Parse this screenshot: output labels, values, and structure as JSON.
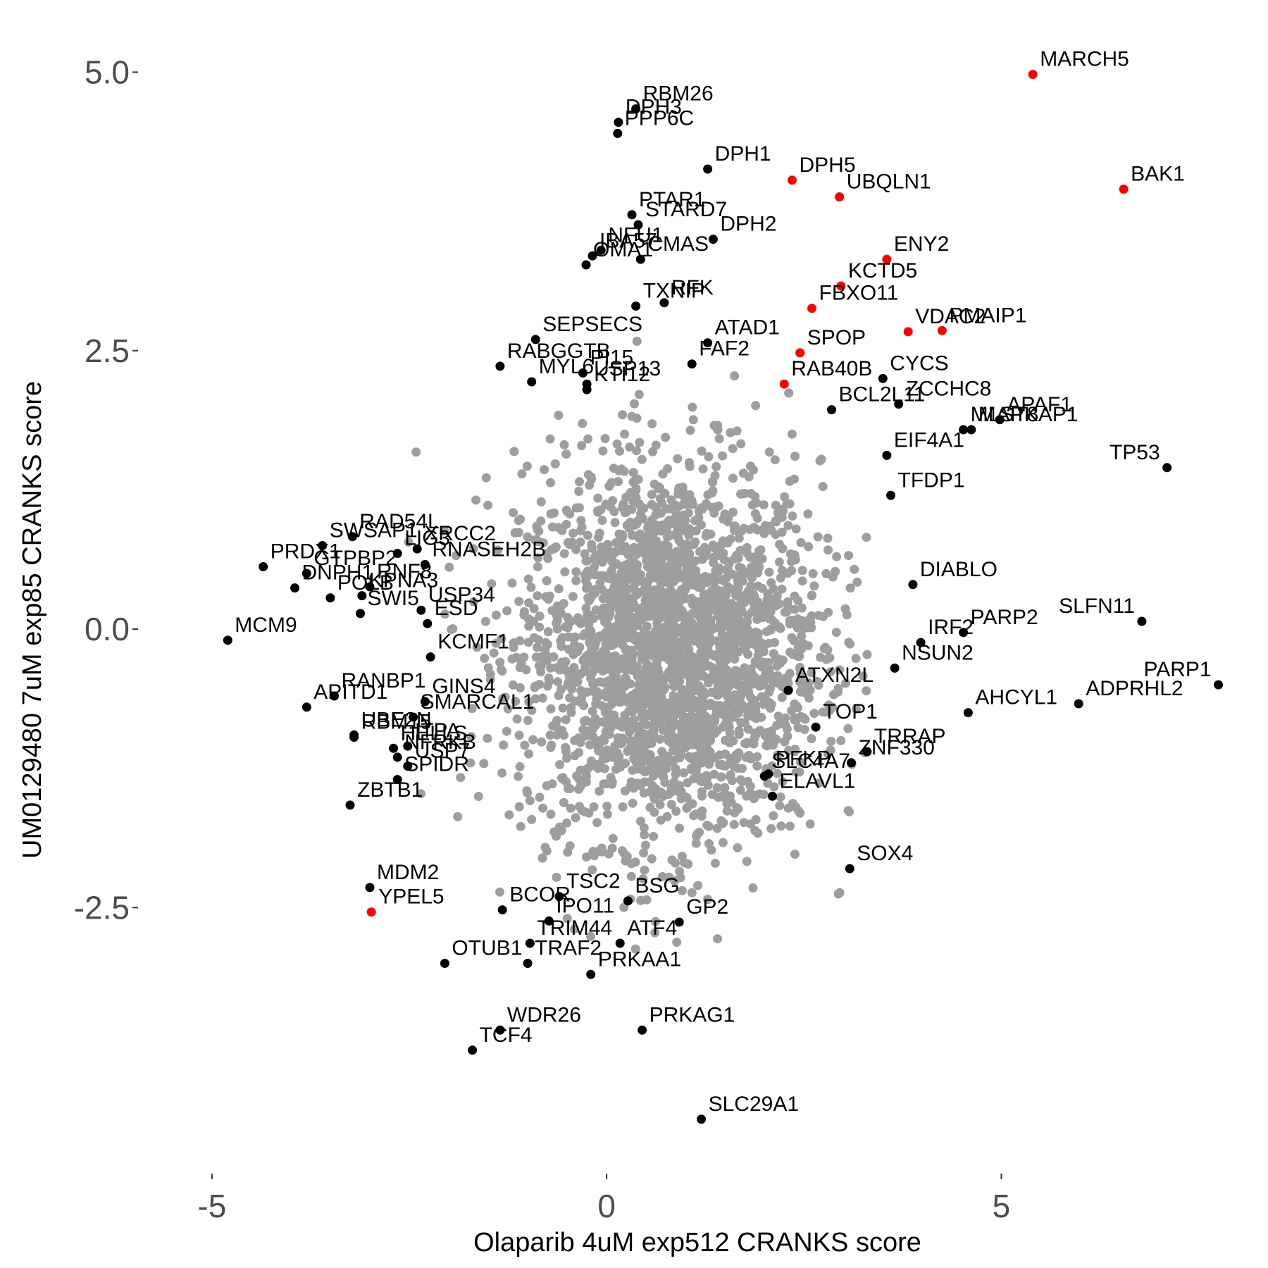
{
  "chart_data": {
    "type": "scatter",
    "title": "",
    "xlabel": "Olaparib 4uM exp512 CRANKS score",
    "ylabel": "UM0129480 7uM exp85 CRANKS score",
    "xlim": [
      -5.9,
      8.2
    ],
    "ylim": [
      -4.85,
      5.3
    ],
    "xticks": [
      -5,
      0,
      5
    ],
    "xtick_labels": [
      "-5",
      "0",
      "5"
    ],
    "yticks": [
      -2.5,
      0.0,
      2.5,
      5.0
    ],
    "ytick_labels": [
      "-2.5",
      "0.0",
      "2.5",
      "5.0"
    ],
    "grid": false,
    "legend": "none",
    "colors": {
      "background_genes": "#9e9e9e",
      "labeled_genes": "#000000",
      "highlighted_genes": "#ff0000",
      "tick_labels": "#4d4d4d"
    },
    "background_cloud": {
      "x_center": 0.8,
      "y_center": -0.2,
      "x_spread": 0.95,
      "y_spread": 0.85,
      "count": 2600
    },
    "labeled_points": [
      {
        "label": "MARCH5",
        "x": 5.4,
        "y": 4.98,
        "color": "red"
      },
      {
        "label": "BAK1",
        "x": 6.55,
        "y": 3.95,
        "color": "red"
      },
      {
        "label": "RBM26",
        "x": 0.37,
        "y": 4.67,
        "color": "black"
      },
      {
        "label": "DPH3",
        "x": 0.15,
        "y": 4.55,
        "color": "black"
      },
      {
        "label": "PPP6C",
        "x": 0.14,
        "y": 4.45,
        "color": "black"
      },
      {
        "label": "DPH1",
        "x": 1.28,
        "y": 4.13,
        "color": "black"
      },
      {
        "label": "DPH5",
        "x": 2.35,
        "y": 4.03,
        "color": "red"
      },
      {
        "label": "UBQLN1",
        "x": 2.95,
        "y": 3.88,
        "color": "red"
      },
      {
        "label": "PTAR1",
        "x": 0.32,
        "y": 3.72,
        "color": "black"
      },
      {
        "label": "STARD7",
        "x": 0.4,
        "y": 3.63,
        "color": "black"
      },
      {
        "label": "NFU1",
        "x": -0.07,
        "y": 3.4,
        "color": "black"
      },
      {
        "label": "IBA57",
        "x": -0.18,
        "y": 3.35,
        "color": "black"
      },
      {
        "label": "DPH2",
        "x": 1.35,
        "y": 3.5,
        "color": "black"
      },
      {
        "label": "CMAS",
        "x": 0.43,
        "y": 3.32,
        "color": "black"
      },
      {
        "label": "OMA1",
        "x": -0.26,
        "y": 3.27,
        "color": "black"
      },
      {
        "label": "KCTD5",
        "x": 2.97,
        "y": 3.08,
        "color": "red"
      },
      {
        "label": "ENY2",
        "x": 3.55,
        "y": 3.32,
        "color": "red"
      },
      {
        "label": "RFK",
        "x": 0.73,
        "y": 2.93,
        "color": "black"
      },
      {
        "label": "FBXO11",
        "x": 2.6,
        "y": 2.88,
        "color": "red"
      },
      {
        "label": "TXNIP",
        "x": 0.37,
        "y": 2.9,
        "color": "black"
      },
      {
        "label": "VDAC2",
        "x": 3.82,
        "y": 2.67,
        "color": "red"
      },
      {
        "label": "PMAIP1",
        "x": 4.25,
        "y": 2.68,
        "color": "red"
      },
      {
        "label": "SPOP",
        "x": 2.45,
        "y": 2.48,
        "color": "red"
      },
      {
        "label": "SEPSECS",
        "x": -0.9,
        "y": 2.6,
        "color": "black"
      },
      {
        "label": "ATAD1",
        "x": 1.28,
        "y": 2.57,
        "color": "black"
      },
      {
        "label": "RABGGTB",
        "x": -1.35,
        "y": 2.36,
        "color": "black"
      },
      {
        "label": "FAF2",
        "x": 1.08,
        "y": 2.38,
        "color": "black"
      },
      {
        "label": "PI15",
        "x": -0.3,
        "y": 2.3,
        "color": "black"
      },
      {
        "label": "RAB40B",
        "x": 2.25,
        "y": 2.2,
        "color": "red"
      },
      {
        "label": "CYCS",
        "x": 3.5,
        "y": 2.25,
        "color": "black"
      },
      {
        "label": "MYL6",
        "x": -0.95,
        "y": 2.22,
        "color": "black"
      },
      {
        "label": "USP13",
        "x": -0.25,
        "y": 2.2,
        "color": "black"
      },
      {
        "label": "KTI12",
        "x": -0.25,
        "y": 2.15,
        "color": "black"
      },
      {
        "label": "ZCCHC8",
        "x": 3.7,
        "y": 2.02,
        "color": "black"
      },
      {
        "label": "BCL2L11",
        "x": 2.85,
        "y": 1.97,
        "color": "black"
      },
      {
        "label": "APAF1",
        "x": 4.98,
        "y": 1.88,
        "color": "black"
      },
      {
        "label": "MLST8",
        "x": 4.52,
        "y": 1.79,
        "color": "black"
      },
      {
        "label": "MAPKAP1",
        "x": 4.62,
        "y": 1.79,
        "color": "black"
      },
      {
        "label": "TP53",
        "x": 7.1,
        "y": 1.45,
        "color": "black"
      },
      {
        "label": "EIF4A1",
        "x": 3.55,
        "y": 1.56,
        "color": "black"
      },
      {
        "label": "TFDP1",
        "x": 3.6,
        "y": 1.2,
        "color": "black"
      },
      {
        "label": "SWSAP1",
        "x": -3.6,
        "y": 0.75,
        "color": "black"
      },
      {
        "label": "RAD54L",
        "x": -3.22,
        "y": 0.83,
        "color": "black"
      },
      {
        "label": "DNPH1",
        "x": -3.95,
        "y": 0.37,
        "color": "black"
      },
      {
        "label": "GTPBP2",
        "x": -3.8,
        "y": 0.5,
        "color": "black"
      },
      {
        "label": "XRCC2",
        "x": -2.4,
        "y": 0.72,
        "color": "black"
      },
      {
        "label": "LIG3",
        "x": -2.65,
        "y": 0.68,
        "color": "black"
      },
      {
        "label": "PRDX1",
        "x": -4.35,
        "y": 0.56,
        "color": "black"
      },
      {
        "label": "RNASEH2B",
        "x": -2.3,
        "y": 0.58,
        "color": "black"
      },
      {
        "label": "RNF8",
        "x": -3.0,
        "y": 0.38,
        "color": "black"
      },
      {
        "label": "DIABLO",
        "x": 3.88,
        "y": 0.4,
        "color": "black"
      },
      {
        "label": "POLB",
        "x": -3.5,
        "y": 0.28,
        "color": "black"
      },
      {
        "label": "USP34",
        "x": -2.35,
        "y": 0.17,
        "color": "black"
      },
      {
        "label": "KPNA3",
        "x": -3.1,
        "y": 0.3,
        "color": "black"
      },
      {
        "label": "SWI5",
        "x": -3.12,
        "y": 0.14,
        "color": "black"
      },
      {
        "label": "IRF2",
        "x": 3.98,
        "y": -0.12,
        "color": "black"
      },
      {
        "label": "SLFN11",
        "x": 6.78,
        "y": 0.07,
        "color": "black"
      },
      {
        "label": "ESD",
        "x": -2.27,
        "y": 0.05,
        "color": "black"
      },
      {
        "label": "PARP2",
        "x": 4.52,
        "y": -0.03,
        "color": "black"
      },
      {
        "label": "MCM9",
        "x": -4.8,
        "y": -0.1,
        "color": "black"
      },
      {
        "label": "KCMF1",
        "x": -2.23,
        "y": -0.25,
        "color": "black"
      },
      {
        "label": "NSUN2",
        "x": 3.65,
        "y": -0.35,
        "color": "black"
      },
      {
        "label": "ADPRHL2",
        "x": 5.98,
        "y": -0.67,
        "color": "black"
      },
      {
        "label": "PARP1",
        "x": 7.75,
        "y": -0.5,
        "color": "black"
      },
      {
        "label": "RANBP1",
        "x": -3.45,
        "y": -0.6,
        "color": "black"
      },
      {
        "label": "ATXN2L",
        "x": 2.3,
        "y": -0.55,
        "color": "black"
      },
      {
        "label": "APITD1",
        "x": -3.8,
        "y": -0.7,
        "color": "black"
      },
      {
        "label": "GINS4",
        "x": -2.3,
        "y": -0.65,
        "color": "black"
      },
      {
        "label": "AHCYL1",
        "x": 4.58,
        "y": -0.75,
        "color": "black"
      },
      {
        "label": "RBM15",
        "x": -3.2,
        "y": -0.97,
        "color": "black"
      },
      {
        "label": "SMARCAL1",
        "x": -2.45,
        "y": -0.79,
        "color": "black"
      },
      {
        "label": "TOP1",
        "x": 2.65,
        "y": -0.88,
        "color": "black"
      },
      {
        "label": "ITPA",
        "x": -2.52,
        "y": -1.05,
        "color": "black"
      },
      {
        "label": "HELLS",
        "x": -2.7,
        "y": -1.07,
        "color": "black"
      },
      {
        "label": "TRRAP",
        "x": 3.3,
        "y": -1.1,
        "color": "black"
      },
      {
        "label": "NFRKB",
        "x": -2.65,
        "y": -1.15,
        "color": "black"
      },
      {
        "label": "USP7",
        "x": -2.52,
        "y": -1.23,
        "color": "black"
      },
      {
        "label": "PFKP",
        "x": 2.05,
        "y": -1.3,
        "color": "black"
      },
      {
        "label": "SLC4A7",
        "x": 2.0,
        "y": -1.32,
        "color": "black"
      },
      {
        "label": "ZNF330",
        "x": 3.1,
        "y": -1.2,
        "color": "black"
      },
      {
        "label": "UBE2N",
        "x": -3.2,
        "y": -0.95,
        "color": "black"
      },
      {
        "label": "ZBTB1",
        "x": -3.25,
        "y": -1.58,
        "color": "black"
      },
      {
        "label": "SPIDR",
        "x": -2.65,
        "y": -1.35,
        "color": "black"
      },
      {
        "label": "ELAVL1",
        "x": 2.1,
        "y": -1.5,
        "color": "black"
      },
      {
        "label": "SOX4",
        "x": 3.08,
        "y": -2.15,
        "color": "black"
      },
      {
        "label": "MDM2",
        "x": -3.0,
        "y": -2.32,
        "color": "black"
      },
      {
        "label": "YPEL5",
        "x": -2.98,
        "y": -2.54,
        "color": "red"
      },
      {
        "label": "BCOR",
        "x": -1.32,
        "y": -2.52,
        "color": "black"
      },
      {
        "label": "IPO11",
        "x": -0.73,
        "y": -2.62,
        "color": "black"
      },
      {
        "label": "TSC2",
        "x": -0.6,
        "y": -2.4,
        "color": "black"
      },
      {
        "label": "BSG",
        "x": 0.27,
        "y": -2.44,
        "color": "black"
      },
      {
        "label": "GP2",
        "x": 0.92,
        "y": -2.63,
        "color": "black"
      },
      {
        "label": "TRIM44",
        "x": -0.97,
        "y": -2.82,
        "color": "black"
      },
      {
        "label": "OTUB1",
        "x": -2.05,
        "y": -3.0,
        "color": "black"
      },
      {
        "label": "TRAF2",
        "x": -1.0,
        "y": -3.0,
        "color": "black"
      },
      {
        "label": "ATF4",
        "x": 0.17,
        "y": -2.82,
        "color": "black"
      },
      {
        "label": "PRKAA1",
        "x": -0.2,
        "y": -3.1,
        "color": "black"
      },
      {
        "label": "WDR26",
        "x": -1.35,
        "y": -3.6,
        "color": "black"
      },
      {
        "label": "PRKAG1",
        "x": 0.45,
        "y": -3.6,
        "color": "black"
      },
      {
        "label": "TCF4",
        "x": -1.7,
        "y": -3.78,
        "color": "black"
      },
      {
        "label": "SLC29A1",
        "x": 1.2,
        "y": -4.4,
        "color": "black"
      }
    ]
  }
}
